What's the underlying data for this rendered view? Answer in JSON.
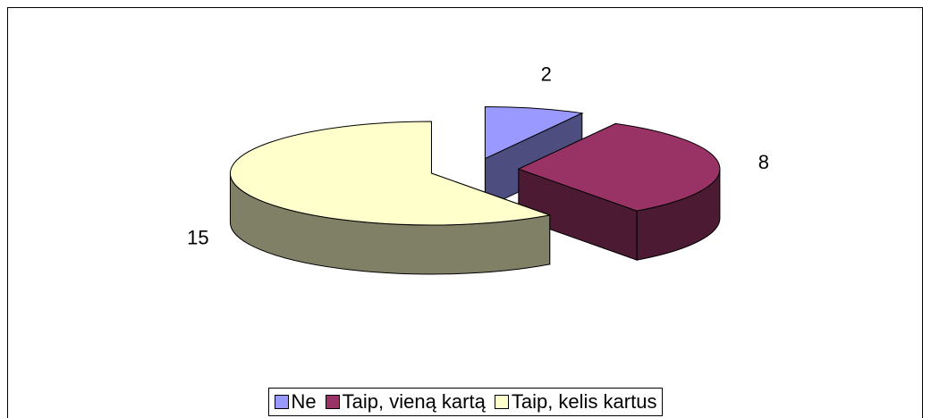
{
  "chart_data": {
    "type": "pie",
    "categories": [
      "Ne",
      "Taip, vieną kartą",
      "Taip, kelis kartus"
    ],
    "values": [
      2,
      8,
      15
    ],
    "colors": [
      "#9999ff",
      "#993366",
      "#ffffcc"
    ],
    "side_colors": [
      "#4d4d80",
      "#4d1a33",
      "#808066"
    ],
    "legend": "bottom"
  }
}
